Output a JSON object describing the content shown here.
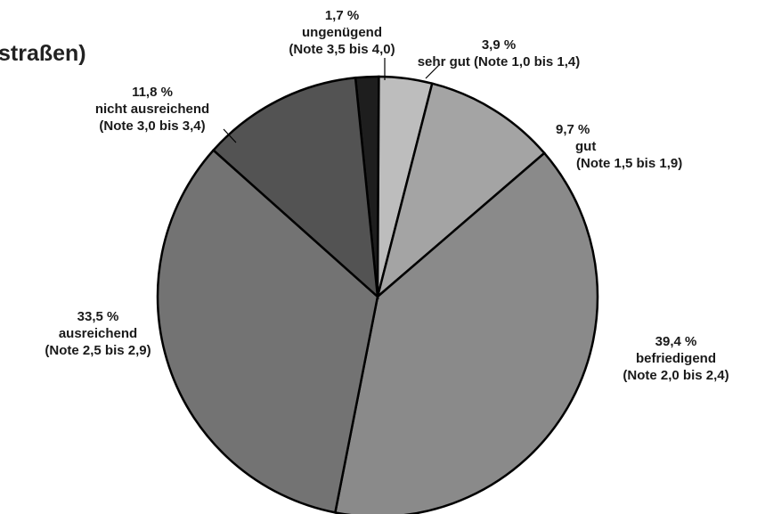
{
  "chart_data": {
    "type": "pie",
    "title": "straßen)",
    "slices": [
      {
        "percent": 1.7,
        "label_pct": "1,7 %",
        "name": "ungenügend",
        "note": "(Note 3,5 bis 4,0)",
        "color": "#1e1e1e"
      },
      {
        "percent": 3.9,
        "label_pct": "3,9 %",
        "name": "sehr gut (Note 1,0 bis 1,4)",
        "note": "",
        "color": "#bdbdbd"
      },
      {
        "percent": 9.7,
        "label_pct": "9,7 %",
        "name": "gut",
        "note": "(Note 1,5 bis 1,9)",
        "color": "#a4a4a4"
      },
      {
        "percent": 39.4,
        "label_pct": "39,4 %",
        "name": "befriedigend",
        "note": "(Note 2,0 bis 2,4)",
        "color": "#8a8a8a"
      },
      {
        "percent": 33.5,
        "label_pct": "33,5 %",
        "name": "ausreichend",
        "note": "(Note 2,5 bis 2,9)",
        "color": "#737373"
      },
      {
        "percent": 11.8,
        "label_pct": "11,8 %",
        "name": "nicht ausreichend",
        "note": "(Note 3,0 bis 3,4)",
        "color": "#535353"
      }
    ]
  }
}
